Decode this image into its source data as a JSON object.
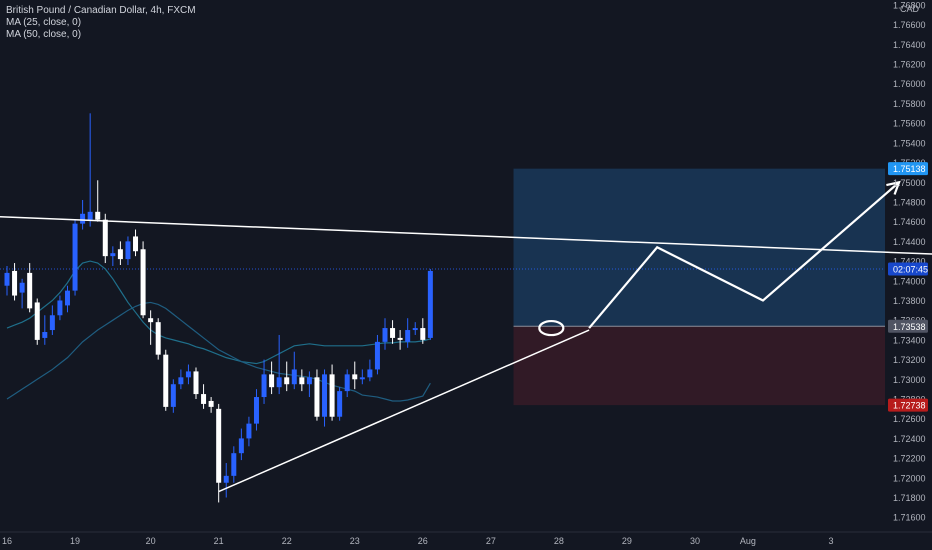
{
  "header": {
    "symbol": "British Pound / Canadian Dollar, 4h, FXCM",
    "indicators": [
      "MA (25, close, 0)",
      "MA (50, close, 0)"
    ],
    "currency": "CAD"
  },
  "colors": {
    "background": "#131722",
    "up_candle": "#2962ff",
    "down_candle": "#ffffff",
    "ma25": "#1f6f8b",
    "ma50": "#1f5d80",
    "target_zone": "#1e4a78",
    "stop_zone": "#4a1e2a",
    "drawing": "#ffffff",
    "axis_text": "#b2b5be",
    "tp_label": "#2196f3",
    "sl_label": "#b71c1c"
  },
  "price_labels": {
    "target": "1.75138",
    "countdown": "02:07:45",
    "entry": "1.73538",
    "stop": "1.72738"
  },
  "chart_data": {
    "type": "candlestick",
    "title": "British Pound / Canadian Dollar, 4h, FXCM",
    "ylabel": "CAD",
    "ylim": [
      1.7145,
      1.7685
    ],
    "y_ticks": [
      "1.71600",
      "1.71800",
      "1.72000",
      "1.72200",
      "1.72400",
      "1.72600",
      "1.72800",
      "1.73000",
      "1.73200",
      "1.73400",
      "1.73600",
      "1.73800",
      "1.74000",
      "1.74200",
      "1.74400",
      "1.74600",
      "1.74800",
      "1.75000",
      "1.75200",
      "1.75400",
      "1.75600",
      "1.75800",
      "1.76000",
      "1.76200",
      "1.76400",
      "1.76600",
      "1.76800"
    ],
    "x_ticks": [
      {
        "label": "16",
        "bar": 0
      },
      {
        "label": "19",
        "bar": 9
      },
      {
        "label": "20",
        "bar": 19
      },
      {
        "label": "21",
        "bar": 28
      },
      {
        "label": "22",
        "bar": 37
      },
      {
        "label": "23",
        "bar": 46
      },
      {
        "label": "26",
        "bar": 55
      },
      {
        "label": "27",
        "bar": 64
      },
      {
        "label": "28",
        "bar": 73
      },
      {
        "label": "29",
        "bar": 82
      },
      {
        "label": "30",
        "bar": 91
      },
      {
        "label": "Aug",
        "bar": 98
      },
      {
        "label": "3",
        "bar": 109
      }
    ],
    "candles": [
      {
        "o": 1.7395,
        "h": 1.7415,
        "l": 1.7385,
        "c": 1.7408
      },
      {
        "o": 1.741,
        "h": 1.7418,
        "l": 1.738,
        "c": 1.7385
      },
      {
        "o": 1.7388,
        "h": 1.7402,
        "l": 1.7372,
        "c": 1.7398
      },
      {
        "o": 1.7408,
        "h": 1.7418,
        "l": 1.7368,
        "c": 1.7372
      },
      {
        "o": 1.7378,
        "h": 1.7382,
        "l": 1.7335,
        "c": 1.734
      },
      {
        "o": 1.7342,
        "h": 1.7365,
        "l": 1.7335,
        "c": 1.7348
      },
      {
        "o": 1.735,
        "h": 1.7375,
        "l": 1.7345,
        "c": 1.7365
      },
      {
        "o": 1.7365,
        "h": 1.7385,
        "l": 1.736,
        "c": 1.738
      },
      {
        "o": 1.7375,
        "h": 1.7395,
        "l": 1.7368,
        "c": 1.739
      },
      {
        "o": 1.739,
        "h": 1.7462,
        "l": 1.7385,
        "c": 1.7458
      },
      {
        "o": 1.7458,
        "h": 1.7482,
        "l": 1.7452,
        "c": 1.7468
      },
      {
        "o": 1.7462,
        "h": 1.757,
        "l": 1.7455,
        "c": 1.747
      },
      {
        "o": 1.747,
        "h": 1.7502,
        "l": 1.746,
        "c": 1.7462
      },
      {
        "o": 1.7462,
        "h": 1.7468,
        "l": 1.7418,
        "c": 1.7425
      },
      {
        "o": 1.7425,
        "h": 1.7435,
        "l": 1.7415,
        "c": 1.7428
      },
      {
        "o": 1.7432,
        "h": 1.744,
        "l": 1.7416,
        "c": 1.7422
      },
      {
        "o": 1.7422,
        "h": 1.7445,
        "l": 1.7416,
        "c": 1.744
      },
      {
        "o": 1.7445,
        "h": 1.7452,
        "l": 1.7425,
        "c": 1.743
      },
      {
        "o": 1.7432,
        "h": 1.744,
        "l": 1.7362,
        "c": 1.7365
      },
      {
        "o": 1.7362,
        "h": 1.737,
        "l": 1.7335,
        "c": 1.7358
      },
      {
        "o": 1.7358,
        "h": 1.7362,
        "l": 1.732,
        "c": 1.7325
      },
      {
        "o": 1.7325,
        "h": 1.733,
        "l": 1.7268,
        "c": 1.7272
      },
      {
        "o": 1.7272,
        "h": 1.73,
        "l": 1.7266,
        "c": 1.7295
      },
      {
        "o": 1.7295,
        "h": 1.731,
        "l": 1.729,
        "c": 1.7302
      },
      {
        "o": 1.7302,
        "h": 1.7315,
        "l": 1.7295,
        "c": 1.7308
      },
      {
        "o": 1.7308,
        "h": 1.7312,
        "l": 1.728,
        "c": 1.7285
      },
      {
        "o": 1.7285,
        "h": 1.7295,
        "l": 1.727,
        "c": 1.7275
      },
      {
        "o": 1.7278,
        "h": 1.7282,
        "l": 1.7266,
        "c": 1.7272
      },
      {
        "o": 1.727,
        "h": 1.7275,
        "l": 1.7175,
        "c": 1.7195
      },
      {
        "o": 1.7195,
        "h": 1.7215,
        "l": 1.718,
        "c": 1.7202
      },
      {
        "o": 1.7202,
        "h": 1.7232,
        "l": 1.7195,
        "c": 1.7225
      },
      {
        "o": 1.7225,
        "h": 1.725,
        "l": 1.7218,
        "c": 1.724
      },
      {
        "o": 1.724,
        "h": 1.7262,
        "l": 1.7232,
        "c": 1.7255
      },
      {
        "o": 1.7255,
        "h": 1.729,
        "l": 1.7248,
        "c": 1.7282
      },
      {
        "o": 1.7282,
        "h": 1.732,
        "l": 1.7275,
        "c": 1.7305
      },
      {
        "o": 1.7305,
        "h": 1.7318,
        "l": 1.7285,
        "c": 1.7292
      },
      {
        "o": 1.7292,
        "h": 1.7345,
        "l": 1.7285,
        "c": 1.7302
      },
      {
        "o": 1.7302,
        "h": 1.7318,
        "l": 1.7288,
        "c": 1.7295
      },
      {
        "o": 1.7295,
        "h": 1.7328,
        "l": 1.729,
        "c": 1.731
      },
      {
        "o": 1.7302,
        "h": 1.731,
        "l": 1.7288,
        "c": 1.7295
      },
      {
        "o": 1.7295,
        "h": 1.7308,
        "l": 1.7282,
        "c": 1.7302
      },
      {
        "o": 1.7302,
        "h": 1.731,
        "l": 1.7258,
        "c": 1.7262
      },
      {
        "o": 1.7262,
        "h": 1.731,
        "l": 1.7252,
        "c": 1.7305
      },
      {
        "o": 1.7305,
        "h": 1.7315,
        "l": 1.7258,
        "c": 1.7262
      },
      {
        "o": 1.7262,
        "h": 1.7292,
        "l": 1.7258,
        "c": 1.7288
      },
      {
        "o": 1.7288,
        "h": 1.731,
        "l": 1.7282,
        "c": 1.7305
      },
      {
        "o": 1.7305,
        "h": 1.7318,
        "l": 1.729,
        "c": 1.73
      },
      {
        "o": 1.73,
        "h": 1.731,
        "l": 1.7295,
        "c": 1.7302
      },
      {
        "o": 1.7302,
        "h": 1.732,
        "l": 1.7298,
        "c": 1.731
      },
      {
        "o": 1.731,
        "h": 1.7345,
        "l": 1.7305,
        "c": 1.7338
      },
      {
        "o": 1.7338,
        "h": 1.7362,
        "l": 1.733,
        "c": 1.7352
      },
      {
        "o": 1.7352,
        "h": 1.736,
        "l": 1.7336,
        "c": 1.7342
      },
      {
        "o": 1.7342,
        "h": 1.735,
        "l": 1.733,
        "c": 1.734
      },
      {
        "o": 1.7338,
        "h": 1.7362,
        "l": 1.7332,
        "c": 1.735
      },
      {
        "o": 1.735,
        "h": 1.7358,
        "l": 1.7345,
        "c": 1.7352
      },
      {
        "o": 1.7352,
        "h": 1.7362,
        "l": 1.7336,
        "c": 1.734
      },
      {
        "o": 1.7342,
        "h": 1.7412,
        "l": 1.734,
        "c": 1.741
      }
    ],
    "series": [
      {
        "name": "MA (25, close, 0)",
        "values": [
          1.7352,
          1.7355,
          1.7358,
          1.7362,
          1.7368,
          1.7374,
          1.738,
          1.7388,
          1.7398,
          1.741,
          1.7418,
          1.742,
          1.7418,
          1.7412,
          1.7402,
          1.739,
          1.7378,
          1.7368,
          1.7358,
          1.735,
          1.7345,
          1.7342,
          1.734,
          1.7338,
          1.7336,
          1.7333,
          1.7331,
          1.7328,
          1.7325,
          1.7322,
          1.732,
          1.7318,
          1.7317,
          1.7316,
          1.7318,
          1.7322,
          1.7326,
          1.733,
          1.7334,
          1.7335,
          1.7336,
          1.7335,
          1.7334,
          1.7334,
          1.7334,
          1.7334,
          1.7334,
          1.7334,
          1.7335,
          1.7336,
          1.7337,
          1.7337,
          1.7338,
          1.7338,
          1.7338,
          1.7339,
          1.7341
        ]
      },
      {
        "name": "MA (50, close, 0)",
        "values": [
          1.728,
          1.7285,
          1.729,
          1.7295,
          1.73,
          1.7305,
          1.731,
          1.7316,
          1.7322,
          1.733,
          1.7338,
          1.7344,
          1.735,
          1.7355,
          1.736,
          1.7365,
          1.737,
          1.7374,
          1.7377,
          1.7378,
          1.7376,
          1.7372,
          1.7366,
          1.736,
          1.7354,
          1.7348,
          1.7342,
          1.7336,
          1.733,
          1.7326,
          1.7322,
          1.7318,
          1.7315,
          1.7312,
          1.731,
          1.7308,
          1.7306,
          1.7305,
          1.7304,
          1.7303,
          1.7302,
          1.73,
          1.7297,
          1.7294,
          1.7292,
          1.729,
          1.7288,
          1.7284,
          1.7283,
          1.7282,
          1.728,
          1.7278,
          1.7278,
          1.7279,
          1.7281,
          1.7283,
          1.7296
        ]
      }
    ],
    "position": {
      "entry": 1.73538,
      "target": 1.75138,
      "stop": 1.72738,
      "from_bar": 67,
      "to_bar": 126
    },
    "current_price_line": 1.7412,
    "drawings": {
      "resistance": [
        {
          "bar": -1,
          "price": 1.7465
        },
        {
          "bar": 126,
          "price": 1.7426
        }
      ],
      "support": [
        {
          "bar": 28,
          "price": 1.7186
        },
        {
          "bar": 77,
          "price": 1.735
        }
      ],
      "projection": [
        {
          "bar": 77,
          "price": 1.7352
        },
        {
          "bar": 86,
          "price": 1.7434
        },
        {
          "bar": 100,
          "price": 1.738
        },
        {
          "bar": 118,
          "price": 1.75
        }
      ],
      "highlight": {
        "bar": 72,
        "price": 1.7352
      }
    }
  }
}
